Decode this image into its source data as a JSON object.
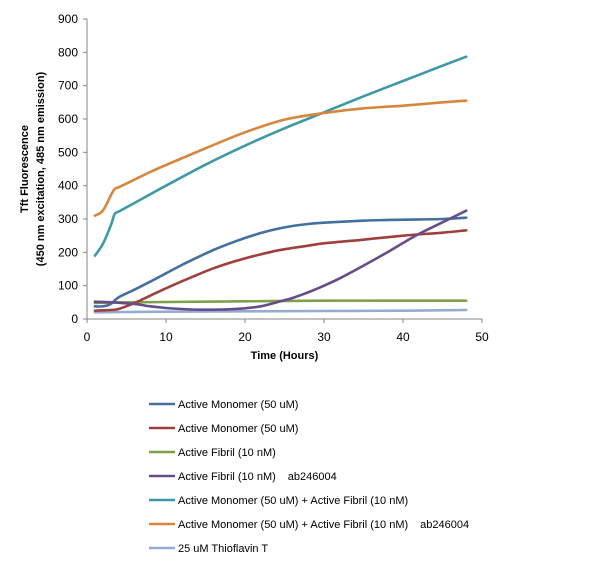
{
  "chart_data": {
    "type": "line",
    "title": "",
    "xlabel": "Time (Hours)",
    "ylabel": [
      "Tft Fluorescence",
      "(450 nm excitation, 485 nm emission)"
    ],
    "xlim": [
      0,
      50
    ],
    "ylim": [
      0,
      900
    ],
    "xticks": [
      0,
      10,
      20,
      30,
      40,
      50
    ],
    "yticks": [
      0,
      100,
      200,
      300,
      400,
      500,
      600,
      700,
      800,
      900
    ],
    "grid": false,
    "legend_position": "bottom",
    "series": [
      {
        "name": "Active Monomer (50 uM)",
        "note": "",
        "color": "#44709d",
        "x": [
          1,
          2,
          3,
          4,
          6,
          8,
          10,
          12,
          14,
          16,
          18,
          20,
          22,
          24,
          26,
          28,
          30,
          35,
          40,
          45,
          48
        ],
        "y": [
          38,
          38,
          45,
          65,
          88,
          112,
          137,
          162,
          185,
          207,
          226,
          243,
          258,
          270,
          279,
          285,
          289,
          295,
          298,
          300,
          304
        ]
      },
      {
        "name": "Active Monomer (50 uM)",
        "note": "",
        "color": "#a0403e",
        "x": [
          1,
          2,
          3,
          4,
          6,
          8,
          10,
          12,
          14,
          16,
          18,
          20,
          22,
          24,
          26,
          28,
          30,
          35,
          40,
          45,
          48
        ],
        "y": [
          25,
          26,
          27,
          30,
          48,
          70,
          92,
          113,
          133,
          152,
          168,
          182,
          194,
          205,
          213,
          220,
          227,
          238,
          250,
          259,
          266
        ]
      },
      {
        "name": "Active Fibril (10 nM)",
        "note": "",
        "color": "#7f9f4a",
        "x": [
          1,
          4,
          10,
          20,
          30,
          40,
          48
        ],
        "y": [
          48,
          50,
          51,
          53,
          55,
          55,
          55
        ]
      },
      {
        "name": "Active Fibril (10 nM)",
        "note": "ab246004",
        "color": "#654d8a",
        "x": [
          1,
          3,
          6,
          8,
          10,
          12,
          14,
          16,
          18,
          20,
          22,
          24,
          26,
          28,
          30,
          32,
          35,
          38,
          40,
          42,
          45,
          48
        ],
        "y": [
          52,
          50,
          45,
          38,
          33,
          30,
          28,
          28,
          29,
          32,
          38,
          50,
          63,
          80,
          100,
          122,
          160,
          200,
          228,
          255,
          290,
          325
        ]
      },
      {
        "name": "Active Monomer (50 uM) + Active Fibril (10 nM)",
        "note": "",
        "color": "#3f98a6",
        "x": [
          1,
          2,
          3,
          3.5,
          4,
          6,
          8,
          10,
          15,
          20,
          25,
          30,
          35,
          40,
          45,
          48
        ],
        "y": [
          190,
          225,
          280,
          315,
          322,
          348,
          374,
          400,
          463,
          520,
          572,
          620,
          668,
          714,
          760,
          787
        ]
      },
      {
        "name": "Active Monomer (50 uM) + Active Fibril (10 nM)",
        "note": "ab246004",
        "color": "#d6873e",
        "x": [
          1,
          2,
          3,
          3.5,
          4,
          6,
          8,
          10,
          15,
          20,
          25,
          30,
          35,
          40,
          45,
          48
        ],
        "y": [
          310,
          325,
          370,
          390,
          395,
          418,
          441,
          462,
          512,
          560,
          598,
          618,
          632,
          640,
          650,
          655
        ]
      },
      {
        "name": "25 uM Thioflavin T",
        "note": "",
        "color": "#94acd0",
        "x": [
          1,
          5,
          10,
          20,
          30,
          40,
          48
        ],
        "y": [
          20,
          21,
          22,
          23,
          24,
          25,
          27
        ]
      }
    ]
  }
}
